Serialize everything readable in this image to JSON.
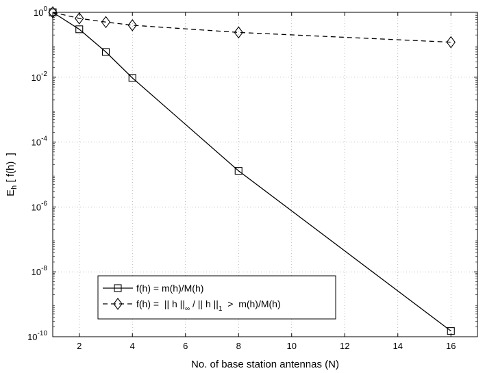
{
  "chart_data": {
    "type": "line",
    "xlabel": "No. of base station antennas (N)",
    "ylabel": {
      "main": "E",
      "subscript": "h",
      "rest": " [ f(h)  ]"
    },
    "x_scale": "linear",
    "y_scale": "log",
    "xlim": [
      1,
      17
    ],
    "ylim": [
      1e-10,
      1
    ],
    "x_ticks": [
      2,
      4,
      6,
      8,
      10,
      12,
      14,
      16
    ],
    "x_tick_labels": [
      "2",
      "4",
      "6",
      "8",
      "10",
      "12",
      "14",
      "16"
    ],
    "y_ticks": [
      {
        "value": 1,
        "base": "10",
        "exp": "0"
      },
      {
        "value": 0.01,
        "base": "10",
        "exp": "-2"
      },
      {
        "value": 0.0001,
        "base": "10",
        "exp": "-4"
      },
      {
        "value": 1e-06,
        "base": "10",
        "exp": "-6"
      },
      {
        "value": 1e-08,
        "base": "10",
        "exp": "-8"
      },
      {
        "value": 1e-10,
        "base": "10",
        "exp": "-10"
      }
    ],
    "grid": true,
    "legend_position": "bottom-left",
    "series": [
      {
        "name": "f(h) = m(h)/M(h)",
        "line_style": "solid",
        "marker": "square",
        "color": "#000000",
        "x": [
          1,
          2,
          3,
          4,
          8,
          16
        ],
        "y": [
          1.0,
          0.3,
          0.06,
          0.0095,
          1.3e-05,
          1.5e-10
        ]
      },
      {
        "name": "f(h) =  || h ||∞ / || h ||1  >  m(h)/M(h)",
        "legend_parts": {
          "a": "f(h) =  || h ||",
          "sub1": "∞",
          "b": " / || h ||",
          "sub2": "1",
          "c": "  >  m(h)/M(h)"
        },
        "line_style": "dashed",
        "marker": "diamond",
        "color": "#000000",
        "x": [
          1,
          2,
          3,
          4,
          8,
          16
        ],
        "y": [
          1.0,
          0.65,
          0.5,
          0.4,
          0.24,
          0.12
        ]
      }
    ]
  }
}
